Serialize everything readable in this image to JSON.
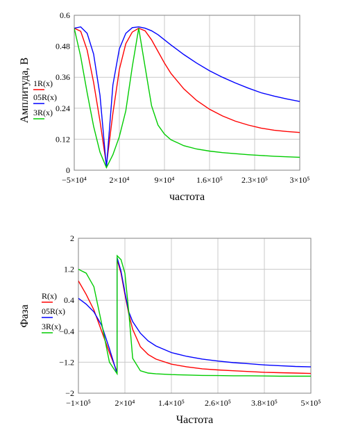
{
  "chart_data": [
    {
      "type": "line",
      "ylabel": "Амплитуда, В",
      "xlabel": "частота",
      "xlim": [
        -50000,
        300000
      ],
      "ylim": [
        0,
        0.6
      ],
      "x_ticks": [
        -50000,
        20000,
        90000,
        160000,
        230000,
        300000
      ],
      "x_tick_labels": [
        "−5×10⁴",
        "2×10⁴",
        "9×10⁴",
        "1.6×10⁵",
        "2.3×10⁵",
        "3×10⁵"
      ],
      "y_ticks": [
        0,
        0.12,
        0.24,
        0.36,
        0.48,
        0.6
      ],
      "y_tick_labels": [
        "0",
        "0.12",
        "0.24",
        "0.36",
        "0.48",
        "0.6"
      ],
      "grid": true,
      "legend": "left",
      "series": [
        {
          "name": "1R(x)",
          "color": "#ff0000",
          "x": [
            -50000,
            -40000,
            -30000,
            -20000,
            -10000,
            0,
            10000,
            20000,
            30000,
            40000,
            50000,
            60000,
            70000,
            80000,
            90000,
            100000,
            120000,
            140000,
            160000,
            180000,
            200000,
            220000,
            240000,
            260000,
            280000,
            300000
          ],
          "y": [
            0.55,
            0.538,
            0.465,
            0.34,
            0.19,
            0.02,
            0.22,
            0.39,
            0.49,
            0.535,
            0.55,
            0.54,
            0.505,
            0.46,
            0.415,
            0.375,
            0.315,
            0.27,
            0.236,
            0.21,
            0.19,
            0.175,
            0.163,
            0.155,
            0.15,
            0.146
          ]
        },
        {
          "name": "05R(x)",
          "color": "#0000ff",
          "x": [
            -50000,
            -40000,
            -30000,
            -20000,
            -10000,
            0,
            10000,
            20000,
            30000,
            40000,
            50000,
            60000,
            70000,
            80000,
            90000,
            100000,
            120000,
            140000,
            160000,
            180000,
            200000,
            220000,
            240000,
            260000,
            280000,
            300000
          ],
          "y": [
            0.55,
            0.555,
            0.53,
            0.45,
            0.29,
            0.01,
            0.33,
            0.47,
            0.53,
            0.552,
            0.555,
            0.55,
            0.54,
            0.525,
            0.505,
            0.485,
            0.448,
            0.415,
            0.385,
            0.36,
            0.338,
            0.318,
            0.3,
            0.287,
            0.276,
            0.266
          ]
        },
        {
          "name": "3R(x)",
          "color": "#00cc00",
          "x": [
            -50000,
            -40000,
            -30000,
            -20000,
            -10000,
            0,
            10000,
            20000,
            30000,
            40000,
            50000,
            60000,
            70000,
            80000,
            90000,
            100000,
            120000,
            140000,
            160000,
            180000,
            200000,
            220000,
            240000,
            260000,
            280000,
            300000
          ],
          "y": [
            0.55,
            0.44,
            0.3,
            0.17,
            0.07,
            0.01,
            0.06,
            0.13,
            0.23,
            0.4,
            0.55,
            0.4,
            0.25,
            0.175,
            0.14,
            0.118,
            0.095,
            0.082,
            0.074,
            0.068,
            0.064,
            0.06,
            0.057,
            0.054,
            0.052,
            0.05
          ]
        }
      ]
    },
    {
      "type": "line",
      "ylabel": "Фаза",
      "xlabel": "Частота",
      "xlim": [
        -100000,
        500000
      ],
      "ylim": [
        -2,
        2
      ],
      "x_ticks": [
        -100000,
        20000,
        140000,
        260000,
        380000,
        500000
      ],
      "x_tick_labels": [
        "−1×10⁵",
        "2×10⁴",
        "1.4×10⁵",
        "2.6×10⁵",
        "3.8×10⁵",
        "5×10⁵"
      ],
      "y_ticks": [
        -2,
        -1.2,
        -0.4,
        0.4,
        1.2,
        2
      ],
      "y_tick_labels": [
        "−2",
        "−1.2",
        "−0.4",
        "0.4",
        "1.2",
        "2"
      ],
      "grid": true,
      "legend": "left",
      "series": [
        {
          "name": "R(x)",
          "color": "#ff0000",
          "x": [
            -100000,
            -80000,
            -60000,
            -40000,
            -20000,
            -1,
            0,
            10000,
            20000,
            30000,
            40000,
            60000,
            80000,
            100000,
            140000,
            180000,
            220000,
            260000,
            300000,
            340000,
            380000,
            420000,
            460000,
            500000
          ],
          "y": [
            0.9,
            0.55,
            0.15,
            -0.4,
            -0.95,
            -1.45,
            1.45,
            1.1,
            0.55,
            0.05,
            -0.35,
            -0.8,
            -1.0,
            -1.12,
            -1.25,
            -1.32,
            -1.37,
            -1.4,
            -1.42,
            -1.44,
            -1.46,
            -1.47,
            -1.48,
            -1.49
          ]
        },
        {
          "name": "05R(x)",
          "color": "#0000ff",
          "x": [
            -100000,
            -80000,
            -60000,
            -40000,
            -20000,
            -1,
            0,
            10000,
            20000,
            30000,
            40000,
            60000,
            80000,
            100000,
            140000,
            180000,
            220000,
            260000,
            300000,
            340000,
            380000,
            420000,
            460000,
            500000
          ],
          "y": [
            0.45,
            0.3,
            0.1,
            -0.25,
            -0.85,
            -1.5,
            1.5,
            1.15,
            0.6,
            0.1,
            -0.15,
            -0.45,
            -0.65,
            -0.78,
            -0.95,
            -1.05,
            -1.12,
            -1.17,
            -1.21,
            -1.24,
            -1.27,
            -1.29,
            -1.31,
            -1.32
          ]
        },
        {
          "name": "3R(x)",
          "color": "#00cc00",
          "x": [
            -100000,
            -80000,
            -60000,
            -40000,
            -20000,
            -1,
            0,
            10000,
            20000,
            30000,
            40000,
            60000,
            80000,
            100000,
            140000,
            180000,
            220000,
            260000,
            300000,
            340000,
            380000,
            420000,
            460000,
            500000
          ],
          "y": [
            1.2,
            1.1,
            0.75,
            -0.2,
            -1.2,
            -1.5,
            1.55,
            1.45,
            1.1,
            0.1,
            -1.1,
            -1.42,
            -1.48,
            -1.5,
            -1.52,
            -1.53,
            -1.54,
            -1.545,
            -1.55,
            -1.55,
            -1.555,
            -1.56,
            -1.56,
            -1.56
          ]
        }
      ]
    }
  ]
}
